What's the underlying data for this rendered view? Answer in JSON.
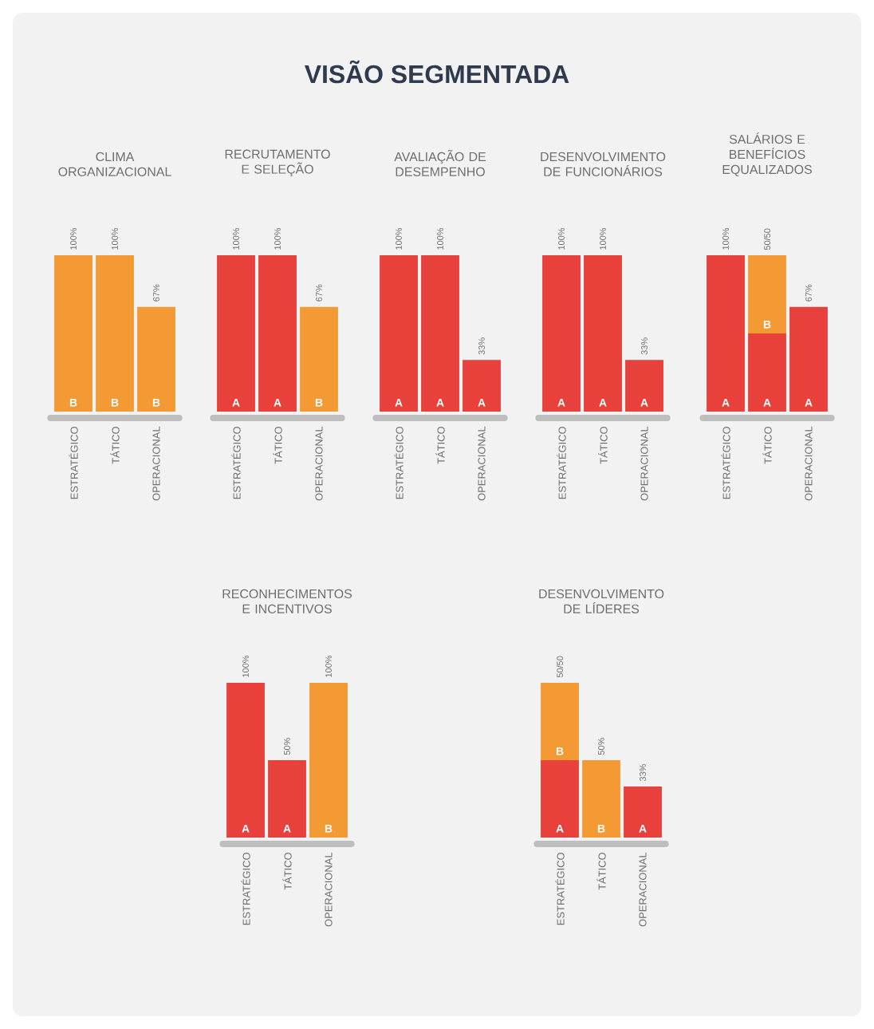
{
  "chart_data": [
    {
      "type": "bar",
      "title": "CLIMA ORGANIZACIONAL",
      "categories": [
        "ESTRATÉGICO",
        "TÁTICO",
        "OPERACIONAL"
      ],
      "stacked": true,
      "tick_labels": "x",
      "annotations": [
        "VISÃO SEGMENTADA"
      ],
      "series": [
        {
          "name": "B",
          "color": "#f39a34",
          "values": [
            100,
            100,
            67
          ],
          "value_labels": [
            "100%",
            "100%",
            "67%"
          ]
        }
      ]
    },
    {
      "type": "bar",
      "title": "RECRUTAMENTO E SELEÇÃO",
      "categories": [
        "ESTRATÉGICO",
        "TÁTICO",
        "OPERACIONAL"
      ],
      "stacked": true,
      "tick_labels": "x",
      "series": [
        {
          "name": "A",
          "color": "#e8403a",
          "values": [
            100,
            100,
            null
          ],
          "value_labels": [
            "100%",
            "100%",
            null
          ]
        },
        {
          "name": "B",
          "color": "#f39a34",
          "values": [
            null,
            null,
            67
          ],
          "value_labels": [
            null,
            null,
            "67%"
          ]
        }
      ]
    },
    {
      "type": "bar",
      "title": "AVALIAÇÃO DE DESEMPENHO",
      "categories": [
        "ESTRATÉGICO",
        "TÁTICO",
        "OPERACIONAL"
      ],
      "stacked": true,
      "tick_labels": "x",
      "series": [
        {
          "name": "A",
          "color": "#e8403a",
          "values": [
            100,
            100,
            33
          ],
          "value_labels": [
            "100%",
            "100%",
            "33%"
          ]
        }
      ]
    },
    {
      "type": "bar",
      "title": "DESENVOLVIMENTO DE FUNCIONÁRIOS",
      "categories": [
        "ESTRATÉGICO",
        "TÁTICO",
        "OPERACIONAL"
      ],
      "stacked": true,
      "tick_labels": "x",
      "series": [
        {
          "name": "A",
          "color": "#e8403a",
          "values": [
            100,
            100,
            33
          ],
          "value_labels": [
            "100%",
            "100%",
            "33%"
          ]
        }
      ]
    },
    {
      "type": "bar",
      "title": "SALÁRIOS E BENEFÍCIOS EQUALIZADOS",
      "categories": [
        "ESTRATÉGICO",
        "TÁTICO",
        "OPERACIONAL"
      ],
      "stacked": true,
      "tick_labels": "x",
      "series": [
        {
          "name": "A",
          "color": "#e8403a",
          "values": [
            100,
            50,
            67
          ],
          "value_labels": [
            "100%",
            null,
            "67%"
          ]
        },
        {
          "name": "B",
          "color": "#f39a34",
          "values": [
            null,
            50,
            null
          ],
          "value_labels": [
            null,
            "50/50",
            null
          ]
        }
      ]
    },
    {
      "type": "bar",
      "title": "RECONHECIMENTOS E INCENTIVOS",
      "categories": [
        "ESTRATÉGICO",
        "TÁTICO",
        "OPERACIONAL"
      ],
      "stacked": true,
      "tick_labels": "x",
      "series": [
        {
          "name": "A",
          "color": "#e8403a",
          "values": [
            100,
            50,
            null
          ],
          "value_labels": [
            "100%",
            "50%",
            null
          ]
        },
        {
          "name": "B",
          "color": "#f39a34",
          "values": [
            null,
            null,
            100
          ],
          "value_labels": [
            null,
            null,
            "100%"
          ]
        }
      ]
    },
    {
      "type": "bar",
      "title": "DESENVOLVIMENTO DE LÍDERES",
      "categories": [
        "ESTRATÉGICO",
        "TÁTICO",
        "OPERACIONAL"
      ],
      "stacked": true,
      "tick_labels": "x",
      "series": [
        {
          "name": "A",
          "color": "#e8403a",
          "values": [
            50,
            null,
            33
          ],
          "value_labels": [
            null,
            null,
            "33%"
          ]
        },
        {
          "name": "B",
          "color": "#f39a34",
          "values": [
            50,
            50,
            null
          ],
          "value_labels": [
            "50/50",
            "50%",
            null
          ]
        }
      ]
    }
  ]
}
